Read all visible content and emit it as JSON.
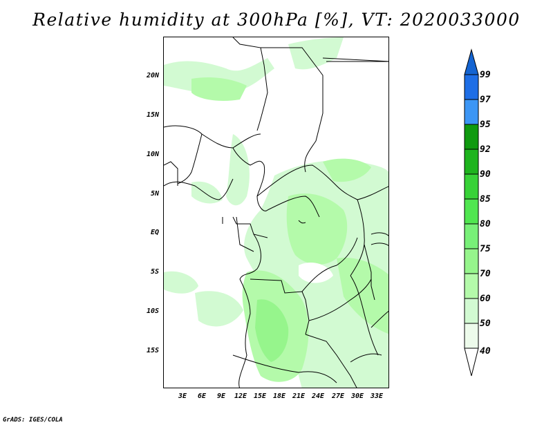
{
  "title": "Relative humidity at 300hPa [%], VT: 2020033000",
  "credit": "GrADS: IGES/COLA",
  "map": {
    "lat_labels": [
      "20N",
      "15N",
      "10N",
      "5N",
      "EQ",
      "5S",
      "10S",
      "15S"
    ],
    "lon_labels": [
      "3E",
      "6E",
      "9E",
      "12E",
      "15E",
      "18E",
      "21E",
      "24E",
      "27E",
      "30E",
      "33E"
    ],
    "region": "Central Africa"
  },
  "colorbar": {
    "levels": [
      "99",
      "97",
      "95",
      "92",
      "90",
      "85",
      "80",
      "75",
      "70",
      "60",
      "50",
      "40"
    ],
    "colors": [
      "#1464d2",
      "#1e6ee6",
      "#3c96f5",
      "#0f9a0f",
      "#1eb41e",
      "#37d237",
      "#50e650",
      "#78f078",
      "#96f58c",
      "#b4faaa",
      "#d2fad2",
      "#edfbeb"
    ],
    "top_color": "#1464d2"
  }
}
